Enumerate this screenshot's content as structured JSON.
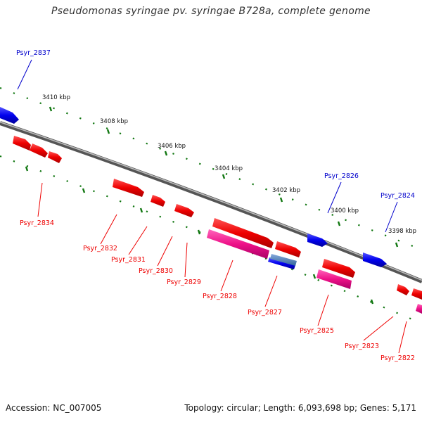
{
  "title": "Pseudomonas syringae pv. syringae B728a, complete genome",
  "footer": {
    "accession": "Accession: NC_007005",
    "stats": "Topology: circular; Length: 6,093,698 bp; Genes: 5,171"
  },
  "colors": {
    "forward": "#0000dd",
    "reverse": "#ee0000",
    "rna": "#ee1177",
    "backbone": "#888888",
    "ticks": "#117711"
  },
  "ruler": [
    "3410 kbp",
    "3408 kbp",
    "3406 kbp",
    "3404 kbp",
    "3402 kbp",
    "3400 kbp",
    "3398 kbp"
  ],
  "genes": {
    "forward": [
      "Psyr_2837",
      "Psyr_2826",
      "Psyr_2824"
    ],
    "reverse": [
      "Psyr_2834",
      "Psyr_2832",
      "Psyr_2831",
      "Psyr_2830",
      "Psyr_2829",
      "Psyr_2828",
      "Psyr_2827",
      "Psyr_2825",
      "Psyr_2823",
      "Psyr_2822"
    ]
  }
}
